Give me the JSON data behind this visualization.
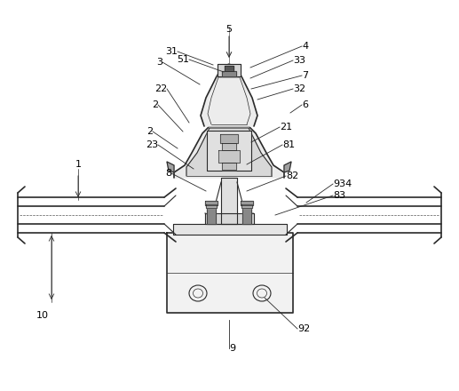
{
  "fig_width": 5.17,
  "fig_height": 4.4,
  "dpi": 100,
  "bg_color": "#ffffff",
  "lc": "#2a2a2a",
  "lw": 0.8,
  "lw2": 1.2,
  "lw1": 0.5
}
